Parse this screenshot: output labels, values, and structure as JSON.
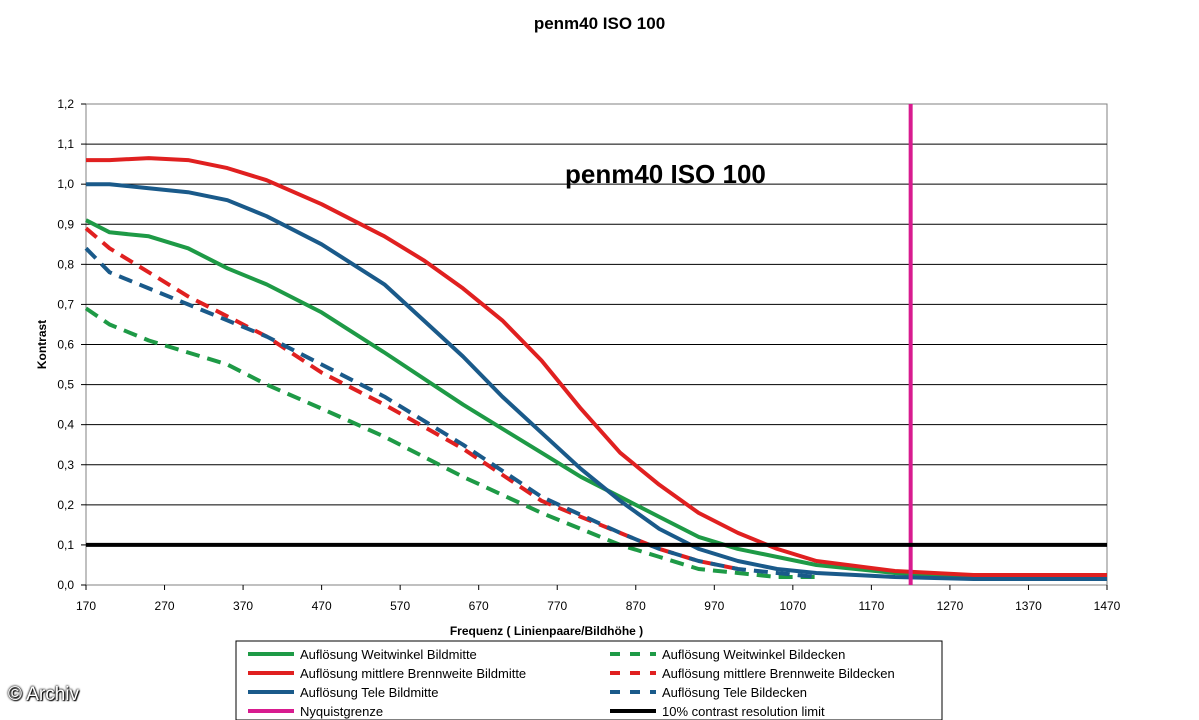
{
  "chart_data": {
    "type": "line",
    "title": "penm40 ISO 100",
    "inner_title": "penm40 ISO 100",
    "xlabel": "Frequenz ( Linienpaare/Bildhöhe )",
    "ylabel": "Kontrast",
    "xlim": [
      170,
      1470
    ],
    "ylim": [
      0.0,
      1.2
    ],
    "x_ticks": [
      "170",
      "270",
      "370",
      "470",
      "570",
      "670",
      "770",
      "870",
      "970",
      "1070",
      "1170",
      "1270",
      "1370",
      "1470"
    ],
    "y_ticks": [
      "0,0",
      "0,1",
      "0,2",
      "0,3",
      "0,4",
      "0,5",
      "0,6",
      "0,7",
      "0,8",
      "0,9",
      "1,0",
      "1,1",
      "1,2"
    ],
    "grid": "horizontal",
    "legend_position": "bottom",
    "series": [
      {
        "name": "Auflösung Weitwinkel Bildmitte",
        "color": "#1e9a46",
        "style": "solid",
        "x": [
          170,
          200,
          250,
          300,
          350,
          400,
          470,
          550,
          650,
          750,
          800,
          850,
          900,
          950,
          1000,
          1100,
          1200,
          1300,
          1470
        ],
        "y": [
          0.91,
          0.88,
          0.87,
          0.84,
          0.79,
          0.75,
          0.68,
          0.58,
          0.45,
          0.33,
          0.27,
          0.22,
          0.17,
          0.12,
          0.09,
          0.05,
          0.03,
          0.02,
          0.02
        ]
      },
      {
        "name": "Auflösung mittlere Brennweite Bildmitte",
        "color": "#e02020",
        "style": "solid",
        "x": [
          170,
          200,
          250,
          300,
          350,
          400,
          470,
          550,
          600,
          650,
          700,
          750,
          800,
          850,
          900,
          950,
          1000,
          1050,
          1100,
          1200,
          1300,
          1470
        ],
        "y": [
          1.06,
          1.06,
          1.065,
          1.06,
          1.04,
          1.01,
          0.95,
          0.87,
          0.81,
          0.74,
          0.66,
          0.56,
          0.44,
          0.33,
          0.25,
          0.18,
          0.13,
          0.09,
          0.06,
          0.035,
          0.025,
          0.025
        ]
      },
      {
        "name": "Auflösung Tele Bildmitte",
        "color": "#1a5a8a",
        "style": "solid",
        "x": [
          170,
          200,
          250,
          300,
          350,
          400,
          470,
          550,
          600,
          650,
          700,
          750,
          800,
          850,
          900,
          950,
          1000,
          1050,
          1100,
          1200,
          1300,
          1470
        ],
        "y": [
          1.0,
          1.0,
          0.99,
          0.98,
          0.96,
          0.92,
          0.85,
          0.75,
          0.66,
          0.57,
          0.47,
          0.38,
          0.29,
          0.21,
          0.14,
          0.09,
          0.06,
          0.04,
          0.03,
          0.02,
          0.015,
          0.015
        ]
      },
      {
        "name": "Auflösung Weitwinkel Bildecken",
        "color": "#1e9a46",
        "style": "dashed",
        "x": [
          170,
          200,
          250,
          300,
          350,
          400,
          470,
          550,
          650,
          750,
          850,
          900,
          950,
          1000,
          1050,
          1100
        ],
        "y": [
          0.69,
          0.65,
          0.61,
          0.58,
          0.55,
          0.5,
          0.44,
          0.37,
          0.27,
          0.18,
          0.1,
          0.07,
          0.04,
          0.03,
          0.02,
          0.02
        ]
      },
      {
        "name": "Auflösung mittlere Brennweite Bildecken",
        "color": "#e02020",
        "style": "dashed",
        "x": [
          170,
          200,
          250,
          300,
          350,
          400,
          470,
          550,
          650,
          750,
          850,
          900,
          950,
          1000
        ],
        "y": [
          0.89,
          0.84,
          0.78,
          0.72,
          0.67,
          0.62,
          0.53,
          0.45,
          0.34,
          0.21,
          0.13,
          0.09,
          0.06,
          0.04
        ]
      },
      {
        "name": "Auflösung Tele Bildecken",
        "color": "#1a5a8a",
        "style": "dashed",
        "x": [
          170,
          200,
          250,
          300,
          350,
          400,
          470,
          550,
          650,
          750,
          850,
          900,
          950,
          1000,
          1050,
          1100
        ],
        "y": [
          0.84,
          0.78,
          0.74,
          0.7,
          0.66,
          0.62,
          0.55,
          0.47,
          0.35,
          0.22,
          0.13,
          0.09,
          0.06,
          0.04,
          0.03,
          0.02
        ]
      }
    ],
    "nyquist": {
      "name": "Nyquistgrenze",
      "color": "#d81b8f",
      "x": 1220
    },
    "limit": {
      "name": "10% contrast resolution limit",
      "color": "#000000",
      "y": 0.1
    },
    "legend": {
      "left": [
        "Auflösung Weitwinkel Bildmitte",
        "Auflösung mittlere Brennweite Bildmitte",
        "Auflösung Tele Bildmitte",
        "Nyquistgrenze"
      ],
      "right": [
        "Auflösung Weitwinkel Bildecken",
        "Auflösung mittlere Brennweite Bildecken",
        "Auflösung Tele Bildecken",
        "10% contrast resolution limit"
      ]
    }
  },
  "watermark": "© Archiv"
}
